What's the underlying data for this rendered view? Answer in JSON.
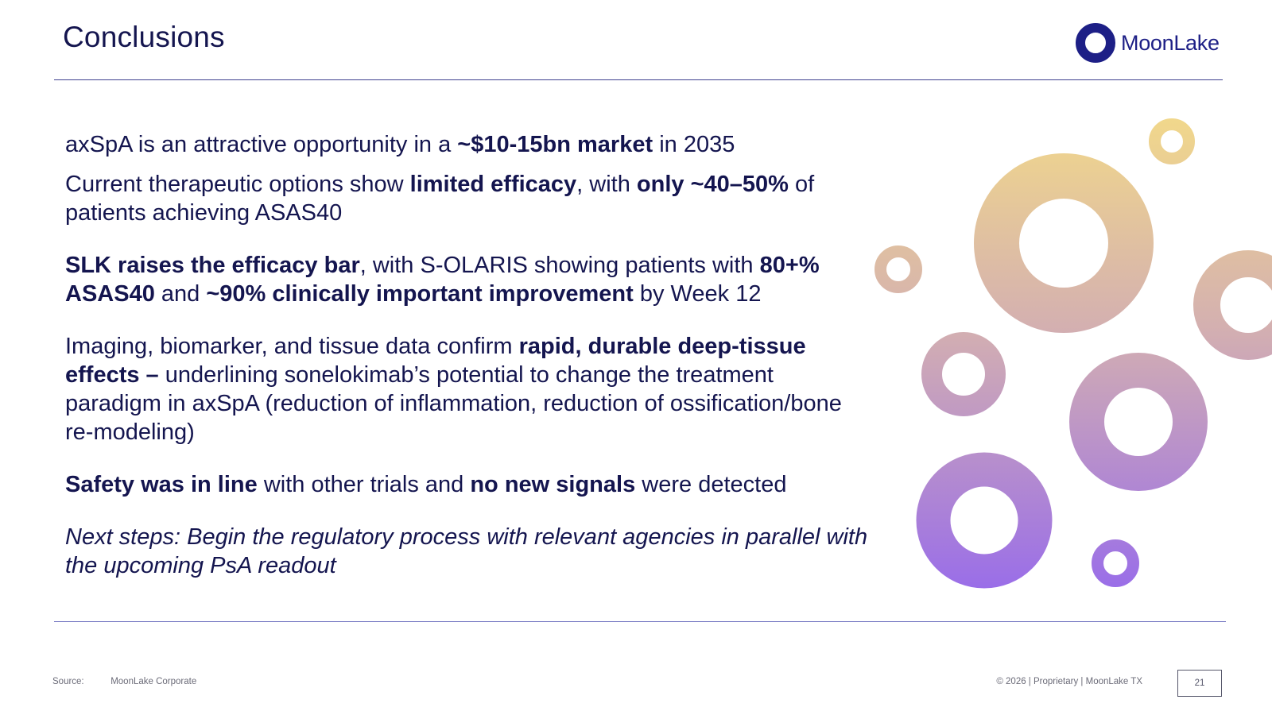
{
  "title": "Conclusions",
  "logo": {
    "text": "MoonLake",
    "color": "#1d1f86"
  },
  "bullets": [
    {
      "segments": [
        {
          "t": "axSpA is an attractive opportunity in a "
        },
        {
          "t": "~$10-15bn market",
          "b": true
        },
        {
          "t": " in 2035"
        }
      ]
    },
    {
      "segments": [
        {
          "t": "Current therapeutic options show "
        },
        {
          "t": "limited efficacy",
          "b": true
        },
        {
          "t": ", with "
        },
        {
          "t": "only ~40–50%",
          "b": true
        },
        {
          "t": " of patients achieving ASAS40"
        }
      ]
    },
    {
      "segments": [
        {
          "t": "SLK raises the efficacy bar",
          "b": true
        },
        {
          "t": ", with S-OLARIS showing patients with "
        },
        {
          "t": "80+% ASAS40",
          "b": true
        },
        {
          "t": " and "
        },
        {
          "t": "~90% clinically important improvement",
          "b": true
        },
        {
          "t": " by Week 12"
        }
      ]
    },
    {
      "segments": [
        {
          "t": "Imaging, biomarker, and tissue data confirm "
        },
        {
          "t": "rapid, durable deep-tissue effects –",
          "b": true
        },
        {
          "t": " underlining sonelokimab’s potential to change the treatment paradigm in axSpA (reduction of inflammation, reduction of ossification/bone re-modeling)"
        }
      ]
    },
    {
      "segments": [
        {
          "t": "Safety was in line",
          "b": true
        },
        {
          "t": " with other trials and "
        },
        {
          "t": "no new signals",
          "b": true
        },
        {
          "t": " were detected"
        }
      ]
    },
    {
      "segments": [
        {
          "t": "Next steps: Begin the regulatory process with relevant agencies in parallel with the upcoming PsA readout"
        }
      ]
    }
  ],
  "footer": {
    "source_label": "Source:",
    "source_value": "MoonLake Corporate",
    "copyright": "© 2026 | Proprietary | MoonLake TX",
    "page_number": "21"
  },
  "colors": {
    "text": "#14154f",
    "ring_gradient_top": "#f2d98a",
    "ring_gradient_mid": "#c9a3b8",
    "ring_gradient_bottom": "#9a6ee8"
  }
}
